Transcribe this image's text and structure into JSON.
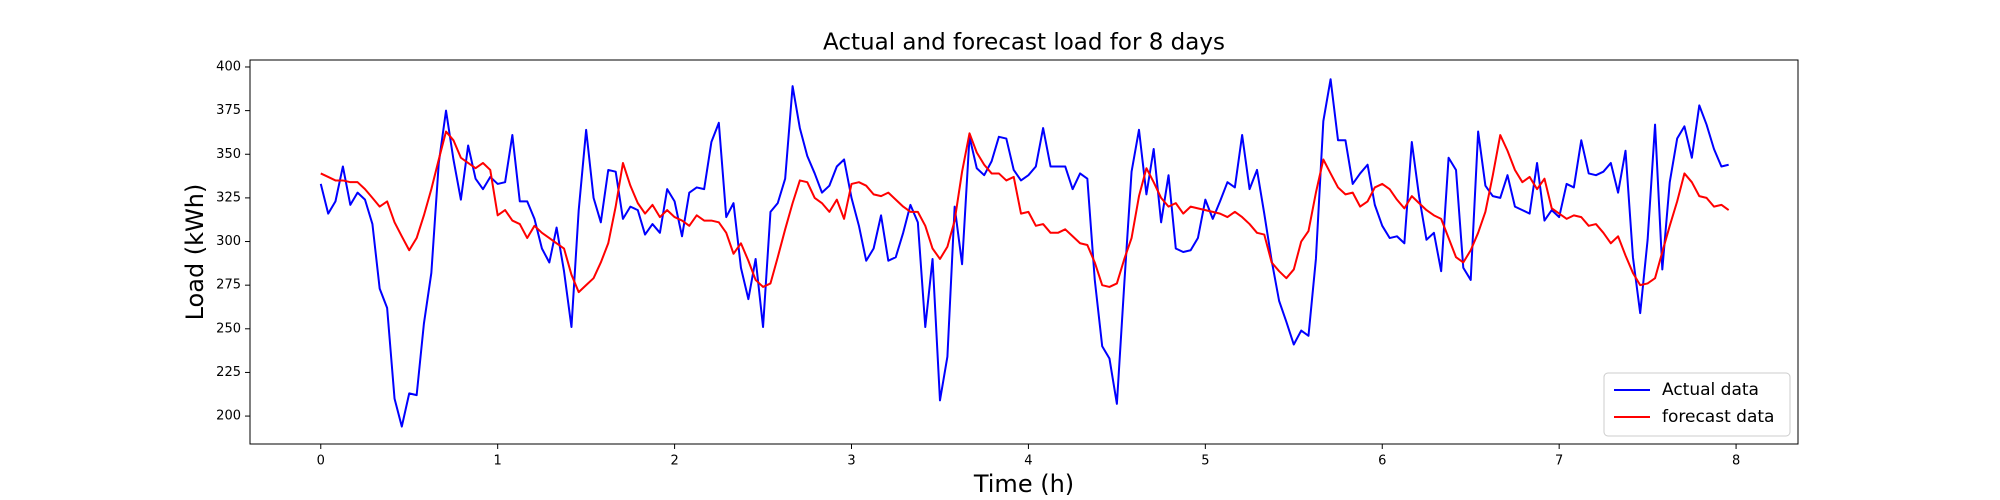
{
  "chart_data": {
    "type": "line",
    "title": "Actual and forecast load for 8 days",
    "xlabel": "Time (h)",
    "ylabel": "Load (kWh)",
    "x": [
      0,
      0.042,
      0.083,
      0.125,
      0.167,
      0.208,
      0.25,
      0.292,
      0.333,
      0.375,
      0.417,
      0.458,
      0.5,
      0.542,
      0.583,
      0.625,
      0.667,
      0.708,
      0.75,
      0.792,
      0.833,
      0.875,
      0.917,
      0.958,
      1,
      1.042,
      1.083,
      1.125,
      1.167,
      1.208,
      1.25,
      1.292,
      1.333,
      1.375,
      1.417,
      1.458,
      1.5,
      1.542,
      1.583,
      1.625,
      1.667,
      1.708,
      1.75,
      1.792,
      1.833,
      1.875,
      1.917,
      1.958,
      2,
      2.042,
      2.083,
      2.125,
      2.167,
      2.208,
      2.25,
      2.292,
      2.333,
      2.375,
      2.417,
      2.458,
      2.5,
      2.542,
      2.583,
      2.625,
      2.667,
      2.708,
      2.75,
      2.792,
      2.833,
      2.875,
      2.917,
      2.958,
      3,
      3.042,
      3.083,
      3.125,
      3.167,
      3.208,
      3.25,
      3.292,
      3.333,
      3.375,
      3.417,
      3.458,
      3.5,
      3.542,
      3.583,
      3.625,
      3.667,
      3.708,
      3.75,
      3.792,
      3.833,
      3.875,
      3.917,
      3.958,
      4,
      4.042,
      4.083,
      4.125,
      4.167,
      4.208,
      4.25,
      4.292,
      4.333,
      4.375,
      4.417,
      4.458,
      4.5,
      4.542,
      4.583,
      4.625,
      4.667,
      4.708,
      4.75,
      4.792,
      4.833,
      4.875,
      4.917,
      4.958,
      5,
      5.042,
      5.083,
      5.125,
      5.167,
      5.208,
      5.25,
      5.292,
      5.333,
      5.375,
      5.417,
      5.458,
      5.5,
      5.542,
      5.583,
      5.625,
      5.667,
      5.708,
      5.75,
      5.792,
      5.833,
      5.875,
      5.917,
      5.958,
      6,
      6.042,
      6.083,
      6.125,
      6.167,
      6.208,
      6.25,
      6.292,
      6.333,
      6.375,
      6.417,
      6.458,
      6.5,
      6.542,
      6.583,
      6.625,
      6.667,
      6.708,
      6.75,
      6.792,
      6.833,
      6.875,
      6.917,
      6.958,
      7,
      7.042,
      7.083,
      7.125,
      7.167,
      7.208,
      7.25,
      7.292,
      7.333,
      7.375,
      7.417,
      7.458,
      7.5,
      7.542,
      7.583,
      7.625,
      7.667,
      7.708,
      7.75,
      7.792,
      7.833,
      7.875,
      7.917,
      7.958
    ],
    "series": [
      {
        "name": "Actual data",
        "color": "#0000ff",
        "values": [
          333,
          316,
          323,
          343,
          321,
          328,
          324,
          310,
          273,
          262,
          210,
          194,
          213,
          212,
          253,
          282,
          345,
          375,
          347,
          324,
          355,
          336,
          330,
          337,
          333,
          334,
          361,
          323,
          323,
          313,
          296,
          288,
          308,
          283,
          251,
          318,
          364,
          325,
          311,
          341,
          340,
          313,
          320,
          318,
          304,
          310,
          305,
          330,
          323,
          303,
          328,
          331,
          330,
          357,
          368,
          314,
          322,
          285,
          267,
          290,
          251,
          317,
          322,
          336,
          389,
          365,
          349,
          339,
          328,
          332,
          343,
          347,
          325,
          309,
          289,
          296,
          315,
          289,
          291,
          305,
          321,
          311,
          251,
          290,
          209,
          234,
          320,
          287,
          360,
          342,
          338,
          346,
          360,
          359,
          341,
          335,
          338,
          343,
          365,
          343,
          343,
          343,
          330,
          339,
          336,
          278,
          240,
          233,
          207,
          276,
          340,
          364,
          327,
          353,
          311,
          338,
          296,
          294,
          295,
          302,
          324,
          313,
          323,
          334,
          331,
          361,
          330,
          341,
          316,
          289,
          266,
          254,
          241,
          249,
          246,
          290,
          369,
          393,
          358,
          358,
          333,
          339,
          344,
          321,
          309,
          302,
          303,
          299,
          357,
          326,
          301,
          305,
          283,
          348,
          341,
          285,
          278,
          363,
          332,
          326,
          325,
          338,
          320,
          318,
          316,
          345,
          312,
          318,
          314,
          333,
          331,
          358,
          339,
          338,
          340,
          345,
          328,
          352,
          291,
          259,
          301,
          367,
          284,
          334,
          359,
          366,
          348,
          378,
          367,
          353,
          343,
          344
        ]
      },
      {
        "name": "forecast data",
        "color": "#ff0000",
        "values": [
          339,
          337,
          335,
          335,
          334,
          334,
          330,
          325,
          320,
          323,
          311,
          303,
          295,
          302,
          315,
          330,
          347,
          363,
          358,
          348,
          345,
          342,
          345,
          341,
          315,
          318,
          312,
          310,
          302,
          309,
          305,
          302,
          299,
          296,
          281,
          271,
          275,
          279,
          288,
          299,
          320,
          345,
          332,
          322,
          316,
          321,
          314,
          318,
          314,
          312,
          309,
          315,
          312,
          312,
          311,
          305,
          293,
          299,
          289,
          278,
          274,
          276,
          291,
          307,
          322,
          335,
          334,
          325,
          322,
          317,
          324,
          313,
          333,
          334,
          332,
          327,
          326,
          328,
          324,
          320,
          317,
          317,
          309,
          296,
          290,
          297,
          312,
          340,
          362,
          351,
          344,
          339,
          339,
          335,
          337,
          316,
          317,
          309,
          310,
          305,
          305,
          307,
          303,
          299,
          298,
          288,
          275,
          274,
          276,
          290,
          302,
          326,
          342,
          334,
          325,
          320,
          322,
          316,
          320,
          319,
          318,
          317,
          316,
          314,
          317,
          314,
          310,
          305,
          304,
          288,
          283,
          279,
          284,
          300,
          306,
          328,
          347,
          339,
          331,
          327,
          328,
          320,
          323,
          331,
          333,
          330,
          324,
          319,
          326,
          322,
          318,
          315,
          313,
          302,
          291,
          288,
          295,
          305,
          317,
          338,
          361,
          352,
          341,
          334,
          337,
          330,
          336,
          319,
          316,
          313,
          315,
          314,
          309,
          310,
          305,
          299,
          303,
          292,
          282,
          275,
          276,
          279,
          294,
          309,
          323,
          339,
          334,
          326,
          325,
          320,
          321,
          318
        ]
      }
    ],
    "xlim": [
      -0.4,
      8.35
    ],
    "ylim": [
      184,
      404
    ],
    "xticks": [
      0,
      1,
      2,
      3,
      4,
      5,
      6,
      7,
      8
    ],
    "yticks": [
      200,
      225,
      250,
      275,
      300,
      325,
      350,
      375,
      400
    ],
    "legend": "lower right"
  }
}
